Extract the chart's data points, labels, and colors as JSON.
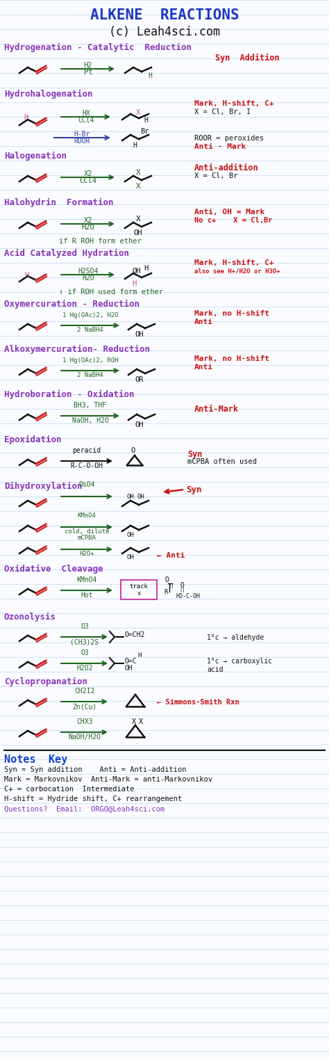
{
  "title": "ALKENE  REACTIONS",
  "subtitle": "(c) Leah4sci.com",
  "bg_color": "#FAFCFF",
  "line_color": "#C5D8F0",
  "title_color": "#1A35C5",
  "subtitle_color": "#111111",
  "purple": "#8833BB",
  "red": "#CC1111",
  "green": "#226622",
  "dark": "#111111",
  "pink": "#CC44AA",
  "blue_arrow": "#3344AA",
  "notes_key": [
    "Syn = Syn addition    Anti = Anti-addition",
    "Mark = Markovnikov  Anti-Mark = anti-Markovnikov",
    "C+ = carbocation  Intermediate",
    "H-shift = Hydride shift, C+ rearrangement",
    "Questions?  Email:  ORGO@Leah4sci.com"
  ]
}
